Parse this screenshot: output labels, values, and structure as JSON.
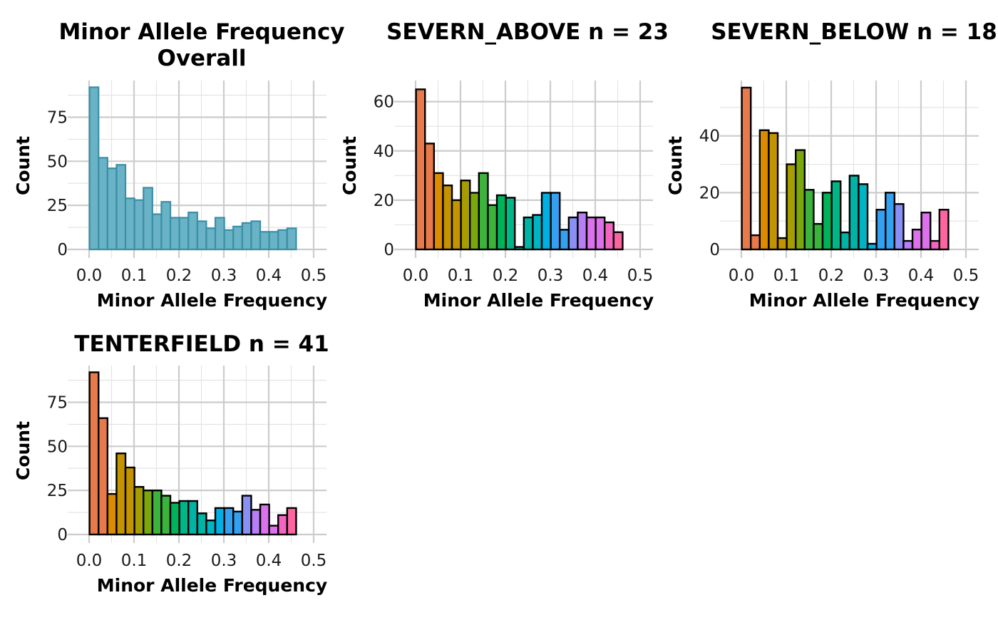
{
  "chart_data": [
    {
      "type": "bar",
      "title": "Minor Allele Frequency\nOverall",
      "xlabel": "Minor Allele Frequency",
      "ylabel": "Count",
      "xlim": [
        0,
        0.5
      ],
      "ylim": [
        0,
        95
      ],
      "xticks": [
        "0.0",
        "0.1",
        "0.2",
        "0.3",
        "0.4",
        "0.5"
      ],
      "yticks": [
        "0",
        "25",
        "50",
        "75"
      ],
      "ytick_values": [
        0,
        25,
        50,
        75
      ],
      "bin_width": 0.02,
      "values": [
        92,
        52,
        46,
        48,
        29,
        28,
        35,
        20,
        27,
        18,
        18,
        21,
        16,
        12,
        18,
        11,
        13,
        15,
        16,
        10,
        10,
        11,
        12
      ],
      "fill": "#6ab2c5",
      "border": "#3a8fa7",
      "grid": true
    },
    {
      "type": "bar",
      "title": "SEVERN_ABOVE n = 23",
      "xlabel": "Minor Allele Frequency",
      "ylabel": "Count",
      "xlim": [
        0,
        0.5
      ],
      "ylim": [
        0,
        68
      ],
      "xticks": [
        "0.0",
        "0.1",
        "0.2",
        "0.3",
        "0.4",
        "0.5"
      ],
      "yticks": [
        "0",
        "20",
        "40",
        "60"
      ],
      "ytick_values": [
        0,
        20,
        40,
        60
      ],
      "bin_width": 0.02,
      "values": [
        65,
        43,
        31,
        26,
        20,
        28,
        23,
        31,
        18,
        22,
        21,
        1,
        13,
        14,
        23,
        23,
        8,
        13,
        15,
        13,
        13,
        11,
        7
      ],
      "border": "#000000",
      "grid": true
    },
    {
      "type": "bar",
      "title": "SEVERN_BELOW n = 18",
      "xlabel": "Minor Allele Frequency",
      "ylabel": "Count",
      "xlim": [
        0,
        0.5
      ],
      "ylim": [
        0,
        59
      ],
      "xticks": [
        "0.0",
        "0.1",
        "0.2",
        "0.3",
        "0.4",
        "0.5"
      ],
      "yticks": [
        "0",
        "20",
        "40"
      ],
      "ytick_values": [
        0,
        20,
        40
      ],
      "bin_width": 0.02,
      "values": [
        57,
        5,
        42,
        41,
        4,
        30,
        35,
        21,
        9,
        20,
        24,
        6,
        26,
        23,
        2,
        14,
        20,
        16,
        3,
        7,
        13,
        3,
        14
      ],
      "border": "#000000",
      "grid": true
    },
    {
      "type": "bar",
      "title": "TENTERFIELD n = 41",
      "xlabel": "Minor Allele Frequency",
      "ylabel": "Count",
      "xlim": [
        0,
        0.5
      ],
      "ylim": [
        0,
        95
      ],
      "xticks": [
        "0.0",
        "0.1",
        "0.2",
        "0.3",
        "0.4",
        "0.5"
      ],
      "yticks": [
        "0",
        "25",
        "50",
        "75"
      ],
      "ytick_values": [
        0,
        25,
        50,
        75
      ],
      "bin_width": 0.02,
      "values": [
        92,
        66,
        23,
        46,
        38,
        27,
        25,
        25,
        22,
        18,
        19,
        19,
        12,
        8,
        15,
        15,
        13,
        22,
        14,
        17,
        5,
        11,
        15
      ],
      "border": "#000000",
      "grid": true
    }
  ],
  "palette": [
    "#e8794a",
    "#dc8a00",
    "#c39400",
    "#a69e00",
    "#7aa70d",
    "#3cb43c",
    "#00b35a",
    "#00b586",
    "#00b3a5",
    "#00b5c3",
    "#00b0e2",
    "#33a1f0",
    "#8a90f3",
    "#b77ef6",
    "#dc71ec",
    "#f365c0",
    "#fc65a0"
  ]
}
